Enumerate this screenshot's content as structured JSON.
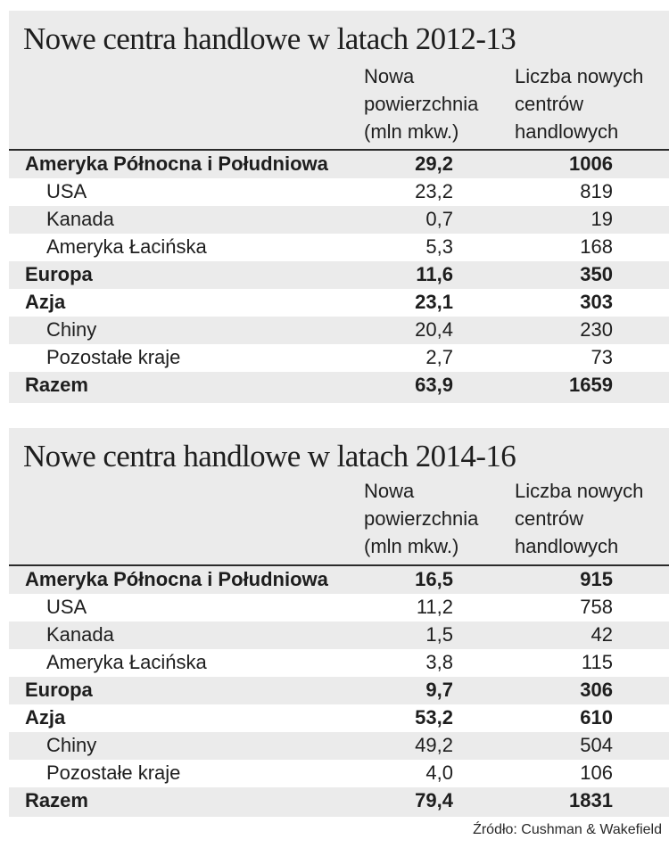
{
  "tables": [
    {
      "title": "Nowe centra handlowe w latach 2012-13",
      "col1_header": "Nowa\npowierzchnia\n(mln mkw.)",
      "col2_header": "Liczba nowych\ncentrów\nhandlowych",
      "rows": [
        {
          "label": "Ameryka Północna i Południowa",
          "area": "29,2",
          "count": "1006",
          "bold": true
        },
        {
          "label": "USA",
          "area": "23,2",
          "count": "819",
          "bold": false
        },
        {
          "label": "Kanada",
          "area": "0,7",
          "count": "19",
          "bold": false
        },
        {
          "label": "Ameryka Łacińska",
          "area": "5,3",
          "count": "168",
          "bold": false
        },
        {
          "label": "Europa",
          "area": "11,6",
          "count": "350",
          "bold": true
        },
        {
          "label": "Azja",
          "area": "23,1",
          "count": "303",
          "bold": true
        },
        {
          "label": "Chiny",
          "area": "20,4",
          "count": "230",
          "bold": false
        },
        {
          "label": "Pozostałe kraje",
          "area": "2,7",
          "count": "73",
          "bold": false
        },
        {
          "label": "Razem",
          "area": "63,9",
          "count": "1659",
          "bold": true
        }
      ]
    },
    {
      "title": "Nowe centra handlowe w latach 2014-16",
      "col1_header": "Nowa\npowierzchnia\n(mln mkw.)",
      "col2_header": "Liczba nowych\ncentrów\nhandlowych",
      "rows": [
        {
          "label": "Ameryka Północna i Południowa",
          "area": "16,5",
          "count": "915",
          "bold": true
        },
        {
          "label": "USA",
          "area": "11,2",
          "count": "758",
          "bold": false
        },
        {
          "label": "Kanada",
          "area": "1,5",
          "count": "42",
          "bold": false
        },
        {
          "label": "Ameryka Łacińska",
          "area": "3,8",
          "count": "115",
          "bold": false
        },
        {
          "label": "Europa",
          "area": "9,7",
          "count": "306",
          "bold": true
        },
        {
          "label": "Azja",
          "area": "53,2",
          "count": "610",
          "bold": true
        },
        {
          "label": "Chiny",
          "area": "49,2",
          "count": "504",
          "bold": false
        },
        {
          "label": "Pozostałe kraje",
          "area": "4,0",
          "count": "106",
          "bold": false
        },
        {
          "label": "Razem",
          "area": "79,4",
          "count": "1831",
          "bold": true
        }
      ]
    }
  ],
  "source": "Źródło: Cushman & Wakefield",
  "colors": {
    "band": "#ebebeb",
    "row_alt": "#ffffff",
    "text": "#1e1e1e"
  }
}
